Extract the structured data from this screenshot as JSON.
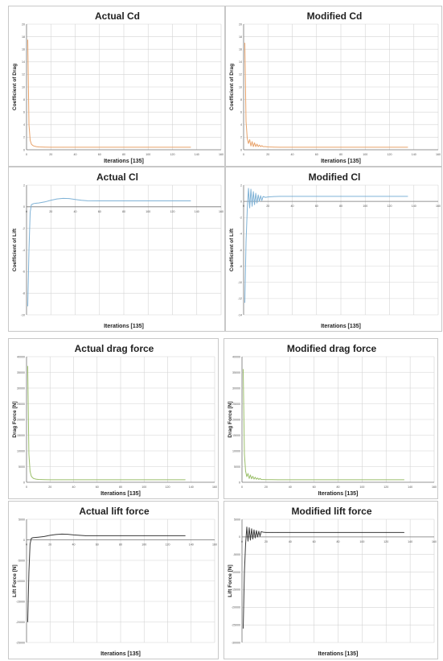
{
  "chart_data": [
    {
      "id": "actual-cd",
      "type": "line",
      "title": "Actual Cd",
      "xlabel": "Iterations [135]",
      "ylabel": "Coefficient of Drag",
      "xlim": [
        0,
        160
      ],
      "ylim": [
        0,
        20
      ],
      "xticks": [
        0,
        20,
        40,
        60,
        80,
        100,
        120,
        140,
        160
      ],
      "yticks": [
        0,
        2,
        4,
        6,
        8,
        10,
        12,
        14,
        16,
        18,
        20
      ],
      "xtick_labels": [
        "0",
        "20",
        "40",
        "60",
        "80",
        "100",
        "120",
        "140",
        "160"
      ],
      "ytick_labels": [
        "0",
        "2",
        "4",
        "6",
        "8",
        "10",
        "12",
        "14",
        "16",
        "18",
        "20"
      ],
      "series": [
        {
          "color": "#e8a26a",
          "x": [
            1,
            2,
            3,
            4,
            5,
            6,
            8,
            10,
            15,
            20,
            30,
            40,
            60,
            80,
            100,
            120,
            135
          ],
          "y": [
            17.5,
            4.0,
            1.5,
            0.9,
            0.7,
            0.6,
            0.5,
            0.45,
            0.42,
            0.4,
            0.4,
            0.4,
            0.4,
            0.4,
            0.4,
            0.4,
            0.4
          ]
        }
      ]
    },
    {
      "id": "modified-cd",
      "type": "line",
      "title": "Modified Cd",
      "xlabel": "Iterations [135]",
      "ylabel": "Coefficient of Drag",
      "xlim": [
        0,
        160
      ],
      "ylim": [
        0,
        20
      ],
      "xticks": [
        0,
        20,
        40,
        60,
        80,
        100,
        120,
        140,
        160
      ],
      "yticks": [
        0,
        2,
        4,
        6,
        8,
        10,
        12,
        14,
        16,
        18,
        20
      ],
      "xtick_labels": [
        "0",
        "20",
        "40",
        "60",
        "80",
        "100",
        "120",
        "140",
        "160"
      ],
      "ytick_labels": [
        "0",
        "2",
        "4",
        "6",
        "8",
        "10",
        "12",
        "14",
        "16",
        "18",
        "20"
      ],
      "series": [
        {
          "color": "#e8a26a",
          "x": [
            1,
            2,
            3,
            4,
            5,
            6,
            7,
            8,
            9,
            10,
            11,
            12,
            13,
            14,
            15,
            16,
            18,
            20,
            25,
            30,
            40,
            60,
            80,
            100,
            120,
            135
          ],
          "y": [
            17.0,
            4.5,
            1.8,
            1.0,
            1.6,
            0.6,
            1.3,
            0.5,
            1.1,
            0.5,
            0.9,
            0.5,
            0.75,
            0.5,
            0.65,
            0.5,
            0.5,
            0.45,
            0.42,
            0.4,
            0.4,
            0.4,
            0.4,
            0.4,
            0.4,
            0.4
          ]
        }
      ]
    },
    {
      "id": "actual-cl",
      "type": "line",
      "title": "Actual Cl",
      "xlabel": "Iterations [135]",
      "ylabel": "Coefficient of Lift",
      "xlim": [
        0,
        160
      ],
      "ylim": [
        -10,
        2
      ],
      "xticks": [
        0,
        20,
        40,
        60,
        80,
        100,
        120,
        140,
        160
      ],
      "yticks": [
        -10,
        -8,
        -6,
        -4,
        -2,
        0,
        2
      ],
      "xtick_labels": [
        "0",
        "20",
        "40",
        "60",
        "80",
        "100",
        "120",
        "140",
        "160"
      ],
      "ytick_labels": [
        "-10",
        "-8",
        "-6",
        "-4",
        "-2",
        "0",
        "2"
      ],
      "series": [
        {
          "color": "#7fb2d6",
          "x": [
            1,
            2,
            3,
            4,
            5,
            6,
            8,
            10,
            15,
            20,
            25,
            30,
            35,
            40,
            45,
            50,
            60,
            80,
            100,
            120,
            135
          ],
          "y": [
            -9.2,
            -4.0,
            -0.5,
            0.2,
            0.25,
            0.3,
            0.33,
            0.35,
            0.45,
            0.6,
            0.72,
            0.78,
            0.76,
            0.68,
            0.6,
            0.56,
            0.55,
            0.55,
            0.55,
            0.55,
            0.55
          ]
        }
      ]
    },
    {
      "id": "modified-cl",
      "type": "line",
      "title": "Modified Cl",
      "xlabel": "Iterations [135]",
      "ylabel": "Coefficient of Lift",
      "xlim": [
        0,
        160
      ],
      "ylim": [
        -14,
        2
      ],
      "xticks": [
        0,
        20,
        40,
        60,
        80,
        100,
        120,
        140,
        160
      ],
      "yticks": [
        -14,
        -12,
        -10,
        -8,
        -6,
        -4,
        -2,
        0,
        2
      ],
      "xtick_labels": [
        "0",
        "20",
        "40",
        "60",
        "80",
        "100",
        "120",
        "140",
        "160"
      ],
      "ytick_labels": [
        "-14",
        "-12",
        "-10",
        "-8",
        "-6",
        "-4",
        "-2",
        "0",
        "2"
      ],
      "series": [
        {
          "color": "#7fb2d6",
          "x": [
            1,
            2,
            3,
            4,
            5,
            6,
            7,
            8,
            9,
            10,
            11,
            12,
            13,
            14,
            15,
            16,
            18,
            20,
            25,
            30,
            40,
            60,
            80,
            100,
            120,
            135
          ],
          "y": [
            -12.5,
            -5.0,
            -1.0,
            1.6,
            -0.8,
            1.5,
            -0.6,
            1.2,
            -0.4,
            1.0,
            -0.2,
            0.8,
            0.0,
            0.7,
            0.1,
            0.6,
            0.5,
            0.55,
            0.6,
            0.62,
            0.62,
            0.62,
            0.62,
            0.62,
            0.62,
            0.62
          ]
        }
      ]
    },
    {
      "id": "actual-drag-force",
      "type": "line",
      "title": "Actual drag force",
      "xlabel": "Iterations [135]",
      "ylabel": "Drag Force [N]",
      "xlim": [
        0,
        160
      ],
      "ylim": [
        0,
        40000
      ],
      "xticks": [
        0,
        20,
        40,
        60,
        80,
        100,
        120,
        140,
        160
      ],
      "yticks": [
        0,
        5000,
        10000,
        15000,
        20000,
        25000,
        30000,
        35000,
        40000
      ],
      "xtick_labels": [
        "0",
        "20",
        "40",
        "60",
        "80",
        "100",
        "120",
        "140",
        "160"
      ],
      "ytick_labels": [
        "0",
        "5000",
        "10000",
        "15000",
        "20000",
        "25000",
        "30000",
        "35000",
        "40000"
      ],
      "series": [
        {
          "color": "#9bbf6a",
          "x": [
            1,
            2,
            3,
            4,
            5,
            6,
            8,
            10,
            15,
            20,
            30,
            40,
            60,
            80,
            100,
            120,
            135
          ],
          "y": [
            37000,
            9000,
            3500,
            2000,
            1500,
            1200,
            1000,
            900,
            850,
            800,
            800,
            800,
            800,
            800,
            800,
            800,
            800
          ]
        }
      ]
    },
    {
      "id": "modified-drag-force",
      "type": "line",
      "title": "Modified drag force",
      "xlabel": "Iterations [135]",
      "ylabel": "Drag Force [N]",
      "xlim": [
        0,
        160
      ],
      "ylim": [
        0,
        40000
      ],
      "xticks": [
        0,
        20,
        40,
        60,
        80,
        100,
        120,
        140,
        160
      ],
      "yticks": [
        0,
        5000,
        10000,
        15000,
        20000,
        25000,
        30000,
        35000,
        40000
      ],
      "xtick_labels": [
        "0",
        "20",
        "40",
        "60",
        "80",
        "100",
        "120",
        "140",
        "160"
      ],
      "ytick_labels": [
        "0",
        "5000",
        "10000",
        "15000",
        "20000",
        "25000",
        "30000",
        "35000",
        "40000"
      ],
      "series": [
        {
          "color": "#9bbf6a",
          "x": [
            1,
            2,
            3,
            4,
            5,
            6,
            7,
            8,
            9,
            10,
            11,
            12,
            13,
            14,
            15,
            16,
            18,
            20,
            25,
            30,
            40,
            60,
            80,
            100,
            120,
            135
          ],
          "y": [
            36000,
            9000,
            3500,
            1800,
            2800,
            1200,
            2300,
            1100,
            1900,
            1000,
            1600,
            950,
            1350,
            900,
            1200,
            880,
            860,
            840,
            820,
            800,
            800,
            800,
            800,
            800,
            800,
            800
          ]
        }
      ]
    },
    {
      "id": "actual-lift-force",
      "type": "line",
      "title": "Actual lift force",
      "xlabel": "Iterations [135]",
      "ylabel": "Lift Force [N]",
      "xlim": [
        0,
        160
      ],
      "ylim": [
        -25000,
        5000
      ],
      "xticks": [
        0,
        20,
        40,
        60,
        80,
        100,
        120,
        140,
        160
      ],
      "yticks": [
        -25000,
        -20000,
        -15000,
        -10000,
        -5000,
        0,
        5000
      ],
      "xtick_labels": [
        "0",
        "20",
        "40",
        "60",
        "80",
        "100",
        "120",
        "140",
        "160"
      ],
      "ytick_labels": [
        "-25000",
        "-20000",
        "-15000",
        "-10000",
        "-5000",
        "0",
        "5000"
      ],
      "series": [
        {
          "color": "#3a3a3a",
          "x": [
            1,
            2,
            3,
            4,
            5,
            6,
            8,
            10,
            15,
            20,
            25,
            30,
            35,
            40,
            45,
            50,
            60,
            80,
            100,
            120,
            135
          ],
          "y": [
            -20000,
            -8000,
            -1000,
            300,
            500,
            550,
            600,
            650,
            800,
            1100,
            1300,
            1400,
            1350,
            1200,
            1100,
            1000,
            1000,
            1000,
            1000,
            1000,
            1000
          ]
        }
      ]
    },
    {
      "id": "modified-lift-force",
      "type": "line",
      "title": "Modified lift force",
      "xlabel": "Iterations [135]",
      "ylabel": "Lift Force [N]",
      "xlim": [
        0,
        160
      ],
      "ylim": [
        -30000,
        5000
      ],
      "xticks": [
        0,
        20,
        40,
        60,
        80,
        100,
        120,
        140,
        160
      ],
      "yticks": [
        -30000,
        -25000,
        -20000,
        -15000,
        -10000,
        -5000,
        0,
        5000
      ],
      "xtick_labels": [
        "0",
        "20",
        "40",
        "60",
        "80",
        "100",
        "120",
        "140",
        "160"
      ],
      "ytick_labels": [
        "-30000",
        "-25000",
        "-20000",
        "-15000",
        "-10000",
        "-5000",
        "0",
        "5000"
      ],
      "series": [
        {
          "color": "#3a3a3a",
          "x": [
            1,
            2,
            3,
            4,
            5,
            6,
            7,
            8,
            9,
            10,
            11,
            12,
            13,
            14,
            15,
            16,
            18,
            20,
            25,
            30,
            40,
            60,
            80,
            100,
            120,
            135
          ],
          "y": [
            -26000,
            -10000,
            -2000,
            2800,
            -1200,
            2600,
            -900,
            2300,
            -600,
            2000,
            -300,
            1800,
            0,
            1600,
            200,
            1500,
            1300,
            1250,
            1250,
            1250,
            1250,
            1250,
            1250,
            1250,
            1250,
            1250
          ]
        }
      ]
    }
  ]
}
